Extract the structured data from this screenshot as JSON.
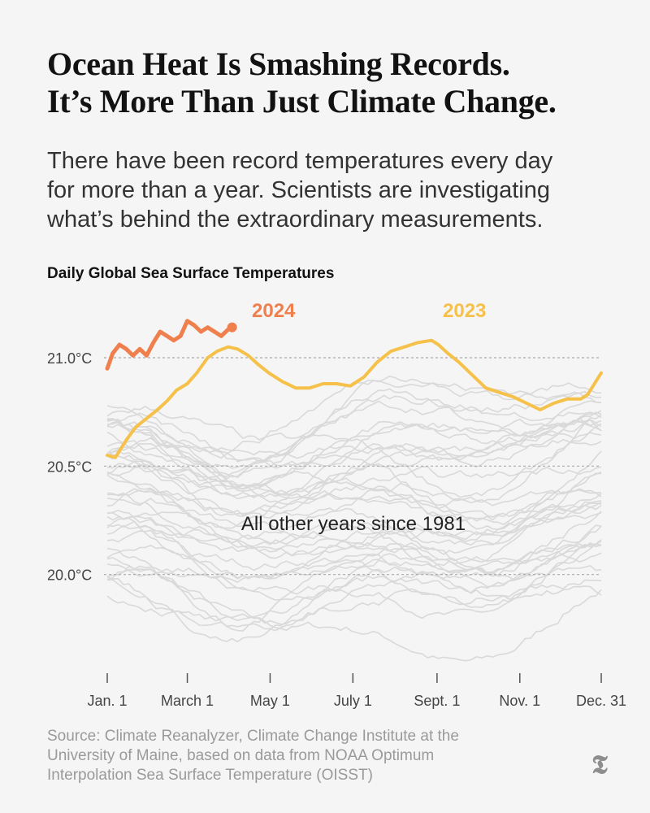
{
  "headline": {
    "line1": "Ocean Heat Is Smashing Records.",
    "line2": "It’s More Than Just Climate Change."
  },
  "dek": {
    "line1": "There have been record temperatures every day",
    "line2": "for more than a year. Scientists are investigating",
    "line3": "what’s behind the extraordinary measurements."
  },
  "source": {
    "line1": "Source: Climate Reanalyzer, Climate Change Institute at the",
    "line2": "University of Maine, based on data from NOAA Optimum",
    "line3": "Interpolation Sea Surface Temperature (OISST)"
  },
  "logo_glyph": "𝕿",
  "colors": {
    "y2024": "#ef7f4c",
    "y2023": "#f5c14b",
    "other": "#d9d9d9",
    "grid": "#aaaaaa",
    "axis": "#555555"
  },
  "chart_data": {
    "type": "line",
    "title": "Daily Global Sea Surface Temperatures",
    "xlabel": "",
    "ylabel": "",
    "xlim": [
      1,
      365
    ],
    "ylim": [
      19.65,
      21.3
    ],
    "x_ticks": [
      {
        "day": 1,
        "label": "Jan. 1"
      },
      {
        "day": 60,
        "label": "March 1"
      },
      {
        "day": 121,
        "label": "May 1"
      },
      {
        "day": 182,
        "label": "July 1"
      },
      {
        "day": 244,
        "label": "Sept. 1"
      },
      {
        "day": 305,
        "label": "Nov. 1"
      },
      {
        "day": 365,
        "label": "Dec. 31"
      }
    ],
    "y_ticks": [
      {
        "value": 20.0,
        "label": "20.0°C"
      },
      {
        "value": 20.5,
        "label": "20.5°C"
      },
      {
        "value": 21.0,
        "label": "21.0°C"
      }
    ],
    "grid": "dashed horizontal at y ticks",
    "annotations": {
      "y2024": "2024",
      "y2023": "2023",
      "others": "All other years since 1981"
    },
    "series": [
      {
        "name": "2024",
        "x": [
          1,
          5,
          10,
          15,
          20,
          25,
          30,
          35,
          40,
          45,
          50,
          55,
          60,
          65,
          70,
          75,
          80,
          85,
          90,
          93
        ],
        "y": [
          20.95,
          21.02,
          21.06,
          21.04,
          21.01,
          21.04,
          21.01,
          21.07,
          21.12,
          21.1,
          21.08,
          21.1,
          21.17,
          21.15,
          21.12,
          21.14,
          21.12,
          21.1,
          21.13,
          21.14
        ]
      },
      {
        "name": "2023",
        "x": [
          1,
          7,
          15,
          22,
          30,
          38,
          45,
          52,
          60,
          67,
          75,
          82,
          90,
          97,
          105,
          112,
          120,
          130,
          140,
          150,
          160,
          170,
          180,
          190,
          200,
          210,
          220,
          230,
          240,
          245,
          252,
          260,
          270,
          280,
          290,
          300,
          310,
          320,
          330,
          340,
          350,
          355,
          360,
          365
        ],
        "y": [
          20.55,
          20.54,
          20.62,
          20.68,
          20.72,
          20.76,
          20.8,
          20.85,
          20.88,
          20.93,
          21.0,
          21.03,
          21.05,
          21.04,
          21.01,
          20.97,
          20.93,
          20.89,
          20.86,
          20.86,
          20.88,
          20.88,
          20.87,
          20.91,
          20.98,
          21.03,
          21.05,
          21.07,
          21.08,
          21.06,
          21.02,
          20.98,
          20.92,
          20.86,
          20.84,
          20.82,
          20.79,
          20.76,
          20.79,
          20.81,
          20.81,
          20.83,
          20.88,
          20.93
        ]
      }
    ],
    "background_series": {
      "name": "All other years since 1981",
      "count": 40,
      "start_range": [
        19.8,
        20.72
      ],
      "seasonal_amplitude": [
        0.06,
        0.17
      ],
      "trend_range": [
        -0.15,
        0.22
      ]
    }
  }
}
